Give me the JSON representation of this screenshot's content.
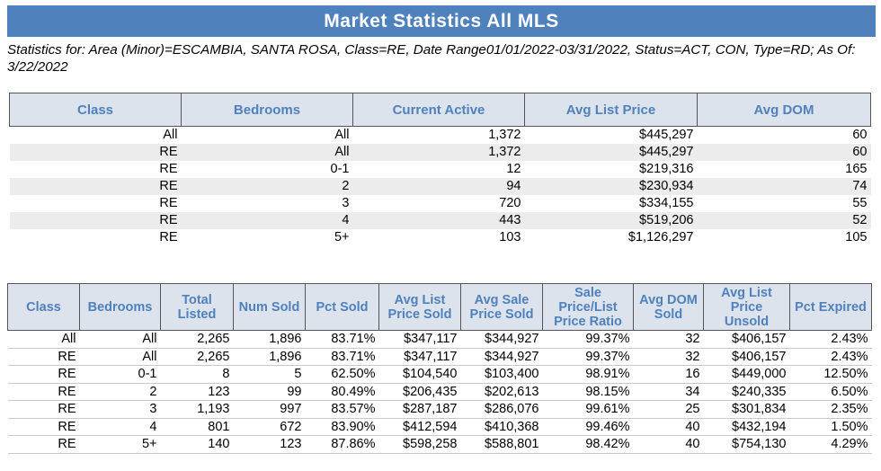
{
  "title": "Market Statistics All MLS",
  "subtitle": "Statistics for: Area (Minor)=ESCAMBIA, SANTA ROSA, Class=RE, Date Range01/01/2022-03/31/2022, Status=ACT, CON, Type=RD; As Of: 3/22/2022",
  "active": {
    "headers": [
      "Class",
      "Bedrooms",
      "Current Active",
      "Avg List Price",
      "Avg DOM"
    ],
    "rows": [
      [
        "All",
        "All",
        "1,372",
        "$445,297",
        "60"
      ],
      [
        "RE",
        "All",
        "1,372",
        "$445,297",
        "60"
      ],
      [
        "RE",
        "0-1",
        "12",
        "$219,316",
        "165"
      ],
      [
        "RE",
        "2",
        "94",
        "$230,934",
        "74"
      ],
      [
        "RE",
        "3",
        "720",
        "$334,155",
        "55"
      ],
      [
        "RE",
        "4",
        "443",
        "$519,206",
        "52"
      ],
      [
        "RE",
        "5+",
        "103",
        "$1,126,297",
        "105"
      ]
    ]
  },
  "sold": {
    "headers": [
      "Class",
      "Bedrooms",
      "Total Listed",
      "Num Sold",
      "Pct Sold",
      "Avg List Price Sold",
      "Avg Sale Price Sold",
      "Sale Price/List Price Ratio",
      "Avg DOM Sold",
      "Avg List Price Unsold",
      "Pct Expired"
    ],
    "rows": [
      [
        "All",
        "All",
        "2,265",
        "1,896",
        "83.71%",
        "$347,117",
        "$344,927",
        "99.37%",
        "32",
        "$406,157",
        "2.43%"
      ],
      [
        "RE",
        "All",
        "2,265",
        "1,896",
        "83.71%",
        "$347,117",
        "$344,927",
        "99.37%",
        "32",
        "$406,157",
        "2.43%"
      ],
      [
        "RE",
        "0-1",
        "8",
        "5",
        "62.50%",
        "$104,540",
        "$103,400",
        "98.91%",
        "16",
        "$449,000",
        "12.50%"
      ],
      [
        "RE",
        "2",
        "123",
        "99",
        "80.49%",
        "$206,435",
        "$202,613",
        "98.15%",
        "34",
        "$240,335",
        "6.50%"
      ],
      [
        "RE",
        "3",
        "1,193",
        "997",
        "83.57%",
        "$287,187",
        "$286,076",
        "99.61%",
        "25",
        "$301,834",
        "2.35%"
      ],
      [
        "RE",
        "4",
        "801",
        "672",
        "83.90%",
        "$412,594",
        "$410,368",
        "99.46%",
        "40",
        "$432,194",
        "1.50%"
      ],
      [
        "RE",
        "5+",
        "140",
        "123",
        "87.86%",
        "$598,258",
        "$588,801",
        "98.42%",
        "40",
        "$754,130",
        "4.29%"
      ]
    ]
  }
}
